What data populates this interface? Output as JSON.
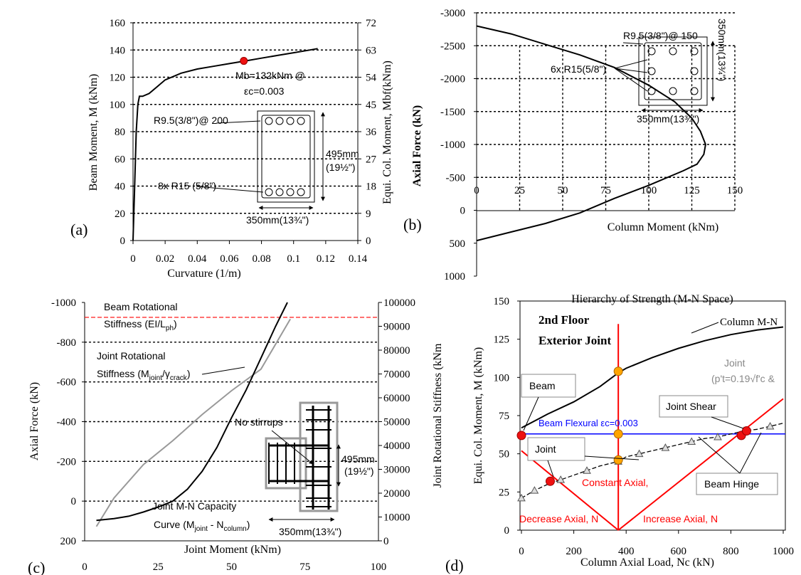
{
  "colors": {
    "red": "#ff0000",
    "blue": "#0000ff",
    "grey": "#999999",
    "orange": "#ffa500",
    "marker_red": "#ee1111"
  },
  "panels": {
    "a": "(a)",
    "b": "(b)",
    "c": "(c)",
    "d": "(d)"
  },
  "chart_data": [
    {
      "id": "a",
      "type": "line",
      "xlabel": "Curvature (1/m)",
      "ylabel": "Beam Moment, M (kNm)",
      "y2label": "Equi. Col. Moment, Mbf(kNm)",
      "xlim": [
        0,
        0.14
      ],
      "ylim": [
        0,
        160
      ],
      "y2lim": [
        0,
        72
      ],
      "xticks": [
        "0",
        "0.02",
        "0.04",
        "0.06",
        "0.08",
        "0.1",
        "0.12",
        "0.14"
      ],
      "yticks": [
        "0",
        "20",
        "40",
        "60",
        "80",
        "100",
        "120",
        "140",
        "160"
      ],
      "y2ticks": [
        "0",
        "9",
        "18",
        "27",
        "36",
        "45",
        "54",
        "63",
        "72"
      ],
      "grid": "horizontal dotted",
      "series": [
        {
          "x": [
            0,
            0.001,
            0.002,
            0.003,
            0.004,
            0.006,
            0.01,
            0.015,
            0.02,
            0.03,
            0.04,
            0.05,
            0.06,
            0.07,
            0.08,
            0.09,
            0.1,
            0.11,
            0.115
          ],
          "y": [
            0,
            40,
            80,
            100,
            106,
            106,
            108,
            113,
            118,
            123,
            126,
            128,
            130,
            132,
            134,
            136,
            138,
            140,
            141
          ]
        }
      ],
      "marker": {
        "x": 0.069,
        "y": 132
      },
      "annotations": {
        "mb_line1": "Mb=132kNm @",
        "mb_line2": "εc=0.003",
        "stirrup": "R9.5(3/8\")@ 200",
        "bars": "8x R15 (5/8\")",
        "height": "495mm",
        "height_in": "(19½\")",
        "width": "350mm(13¾\")"
      }
    },
    {
      "id": "b",
      "type": "line",
      "xlabel": "Column Moment (kNm)",
      "ylabel": "Axial Force (kN)",
      "xlim": [
        0,
        150
      ],
      "ylim": [
        -3000,
        1000
      ],
      "xticks": [
        "0",
        "25",
        "50",
        "75",
        "100",
        "125",
        "150"
      ],
      "yticks": [
        "-3000",
        "-2500",
        "-2000",
        "-1500",
        "-1000",
        "-500",
        "0",
        "500",
        "1000"
      ],
      "grid": "horizontal dotted",
      "series": [
        {
          "x": [
            0,
            20,
            40,
            60,
            80,
            100,
            115,
            125,
            130,
            133,
            132,
            128,
            120,
            100,
            80,
            60,
            40,
            20,
            0
          ],
          "y": [
            -2800,
            -2680,
            -2520,
            -2360,
            -2170,
            -1900,
            -1650,
            -1400,
            -1200,
            -1000,
            -850,
            -700,
            -600,
            -380,
            -180,
            40,
            200,
            330,
            460
          ]
        }
      ],
      "annotations": {
        "stirrup": "R9.5(3/8\")@ 150",
        "bars": "6x R15(5/8\")",
        "height": "350mm(13¾\")",
        "width": "350mm(13¾\")"
      }
    },
    {
      "id": "c",
      "type": "line",
      "xlabel": "Joint Moment (kNm)",
      "ylabel": "Axial Force (kN)",
      "y2label": "Joint Rotational Stiffness (kNm",
      "xlim": [
        0,
        100
      ],
      "ylim": [
        -1000,
        200
      ],
      "y2lim": [
        0,
        100000
      ],
      "xticks": [
        "0",
        "25",
        "50",
        "75",
        "100"
      ],
      "yticks": [
        "-1000",
        "-800",
        "-600",
        "-400",
        "-200",
        "0",
        "200"
      ],
      "y2ticks": [
        "0",
        "10000",
        "20000",
        "30000",
        "40000",
        "50000",
        "60000",
        "70000",
        "80000",
        "90000",
        "100000"
      ],
      "grid": "horizontal dotted",
      "series": [
        {
          "name": "Joint M-N Capacity",
          "x": [
            4,
            10,
            15,
            20,
            25,
            30,
            35,
            40,
            45,
            50,
            55,
            60,
            65,
            69
          ],
          "y": [
            97,
            88,
            76,
            55,
            30,
            0,
            -60,
            -150,
            -270,
            -420,
            -560,
            -720,
            -880,
            -1000
          ]
        },
        {
          "name": "Joint Rotational Stiffness",
          "x": [
            4,
            10,
            20,
            30,
            40,
            50,
            60,
            70
          ],
          "y2": [
            6000,
            18000,
            32000,
            42000,
            53000,
            63000,
            72000,
            93000
          ]
        }
      ],
      "beam_stiffness": -925,
      "annotations": {
        "beam_rot_1": "Beam Rotational",
        "beam_rot_2": "Stiffness (EI/L",
        "beam_rot_sub": "ph",
        "beam_rot_end": ")",
        "joint_rot_1": "Joint Rotational",
        "joint_rot_2": "Stiffness (M",
        "joint_rot_sub1": "joint",
        "joint_rot_mid": "/γ",
        "joint_rot_sub2": "crack",
        "joint_rot_end": ")",
        "no_stirrups": "No stirrups",
        "mn_1": "Joint M-N Capacity",
        "mn_2": "Curve (M",
        "mn_sub1": "joint",
        "mn_mid": " - N",
        "mn_sub2": "column",
        "mn_end": ")",
        "height": "495mm",
        "height_in": "(19½\")",
        "width": "350mm(13¾\")"
      }
    },
    {
      "id": "d",
      "type": "line",
      "title": "Hierarchy of Strength (M-N Space)",
      "xlabel": "Column Axial Load, Nc (kN)",
      "ylabel": "Equi. Col. Moment, M (kNm)",
      "xlim": [
        0,
        1000
      ],
      "ylim": [
        0,
        150
      ],
      "xticks": [
        "0",
        "200",
        "400",
        "600",
        "800",
        "1000"
      ],
      "yticks": [
        "0",
        "25",
        "50",
        "75",
        "100",
        "125",
        "150"
      ],
      "grid": "none",
      "series": [
        {
          "name": "Column M-N",
          "x": [
            0,
            100,
            200,
            300,
            370,
            400,
            500,
            600,
            700,
            800,
            900,
            1000
          ],
          "y": [
            67,
            76,
            84,
            94,
            103,
            106,
            113,
            119,
            124,
            128,
            131,
            133
          ]
        },
        {
          "name": "Joint",
          "x": [
            0,
            50,
            100,
            150,
            200,
            250,
            300,
            370,
            400,
            450,
            500,
            550,
            600,
            650,
            700,
            750,
            800,
            850,
            900,
            950,
            1000
          ],
          "y": [
            21,
            26,
            30,
            33,
            36,
            39,
            42,
            45,
            48,
            50,
            52,
            54,
            56,
            58,
            60,
            61,
            63,
            65,
            66,
            68,
            70
          ]
        },
        {
          "name": "Beam Flexural",
          "y_const": 63
        },
        {
          "name": "Decrease Axial",
          "x": [
            0,
            370
          ],
          "y": [
            52,
            0
          ]
        },
        {
          "name": "Increase Axial",
          "x": [
            370,
            1000
          ],
          "y": [
            0,
            86
          ]
        },
        {
          "name": "Constant Axial",
          "x_const": 370
        }
      ],
      "points_red": [
        {
          "x": 0,
          "y": 62
        },
        {
          "x": 110,
          "y": 32
        },
        {
          "x": 840,
          "y": 62
        },
        {
          "x": 860,
          "y": 65
        }
      ],
      "points_orange": [
        {
          "x": 370,
          "y": 104
        },
        {
          "x": 370,
          "y": 63
        },
        {
          "x": 370,
          "y": 46
        }
      ],
      "annotations": {
        "floor_1": "2nd Floor",
        "floor_2": "Exterior Joint",
        "column_mn": "Column M-N",
        "joint_note_1": "Joint",
        "joint_note_2": "(p't=0.19√f'c &",
        "beam_box": "Beam",
        "beam_flexural": "Beam Flexural εc=0.003",
        "joint_shear": "Joint Shear",
        "joint_box": "Joint",
        "constant_axial": "Constant Axial,",
        "beam_hinge": "Beam  Hinge",
        "decrease_axial": "Decrease Axial, N",
        "increase_axial": "Increase Axial, N"
      }
    }
  ]
}
